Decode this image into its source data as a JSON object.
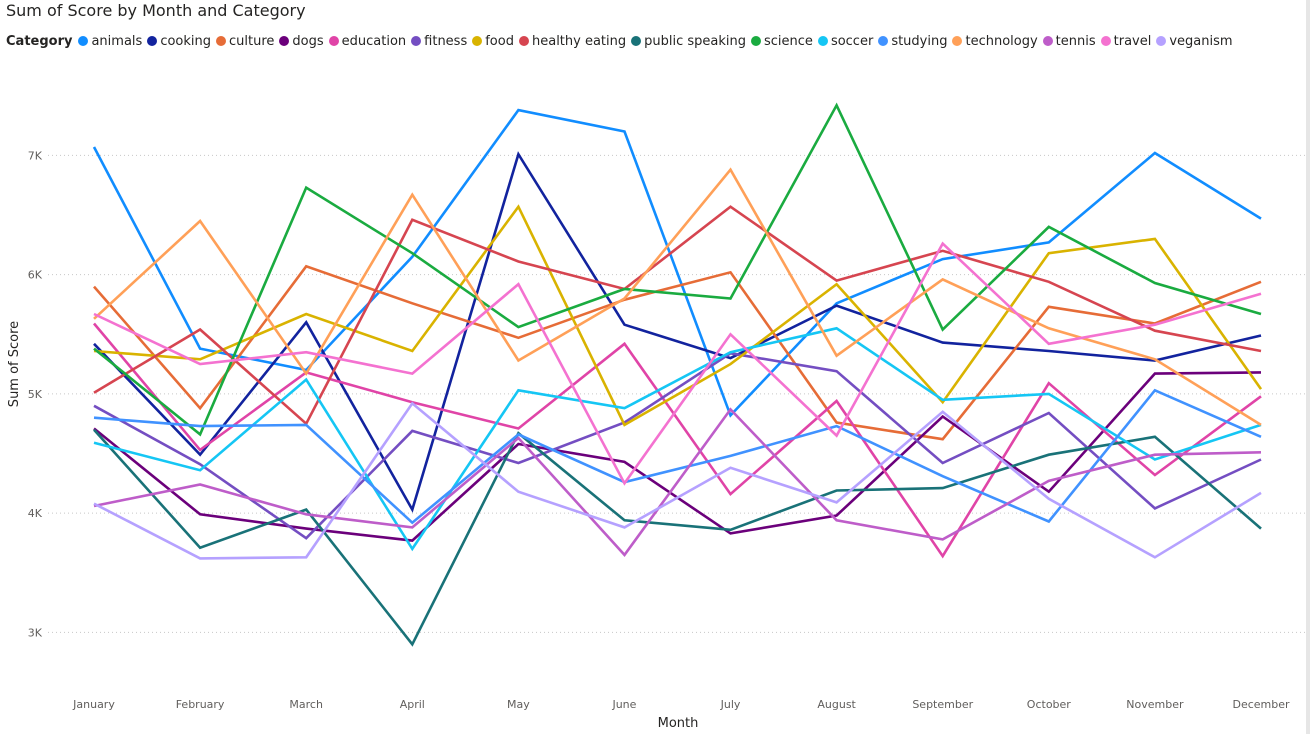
{
  "chart_data": {
    "type": "line",
    "title": "Sum of Score by Month and Category",
    "xlabel": "Month",
    "ylabel": "Sum of Score",
    "legend_title": "Category",
    "legend_position": "top-left",
    "ylim": [
      2500,
      7800
    ],
    "yticks": [
      3000,
      4000,
      5000,
      6000,
      7000
    ],
    "ytick_labels": [
      "3K",
      "4K",
      "5K",
      "6K",
      "7K"
    ],
    "grid": "horizontal-dotted",
    "categories": [
      "January",
      "February",
      "March",
      "April",
      "May",
      "June",
      "July",
      "August",
      "September",
      "October",
      "November",
      "December"
    ],
    "series": [
      {
        "name": "animals",
        "color": "#118DFF",
        "values": [
          7070,
          5380,
          5200,
          6150,
          7380,
          7200,
          4820,
          5760,
          6130,
          6270,
          7020,
          6470
        ]
      },
      {
        "name": "cooking",
        "color": "#12239E",
        "values": [
          5420,
          4490,
          5600,
          4030,
          7010,
          5580,
          5300,
          5740,
          5430,
          5360,
          5280,
          5490
        ]
      },
      {
        "name": "culture",
        "color": "#E66C37",
        "values": [
          5900,
          4880,
          6070,
          5760,
          5470,
          5790,
          6020,
          4760,
          4620,
          5730,
          5590,
          5940
        ]
      },
      {
        "name": "dogs",
        "color": "#6B007B",
        "values": [
          4710,
          3990,
          3870,
          3770,
          4580,
          4430,
          3830,
          3980,
          4810,
          4180,
          5170,
          5180
        ]
      },
      {
        "name": "education",
        "color": "#E044A7",
        "values": [
          5590,
          4530,
          5180,
          4930,
          4710,
          5420,
          4160,
          4940,
          3640,
          5090,
          4320,
          4980
        ]
      },
      {
        "name": "fitness",
        "color": "#744EC2",
        "values": [
          4900,
          4410,
          3790,
          4690,
          4420,
          4760,
          5340,
          5190,
          4420,
          4840,
          4040,
          4450
        ]
      },
      {
        "name": "food",
        "color": "#D9B300",
        "values": [
          5360,
          5290,
          5670,
          5360,
          6570,
          4740,
          5250,
          5920,
          4930,
          6180,
          6300,
          5040
        ]
      },
      {
        "name": "healthy eating",
        "color": "#D64550",
        "values": [
          5010,
          5540,
          4750,
          6460,
          6110,
          5880,
          6570,
          5950,
          6200,
          5940,
          5530,
          5360
        ]
      },
      {
        "name": "public speaking",
        "color": "#197278",
        "values": [
          4700,
          3710,
          4030,
          2900,
          4670,
          3940,
          3860,
          4190,
          4210,
          4490,
          4640,
          3870
        ]
      },
      {
        "name": "science",
        "color": "#1AAB40",
        "values": [
          5380,
          4660,
          6730,
          6180,
          5560,
          5880,
          5800,
          7420,
          5540,
          6400,
          5930,
          5670
        ]
      },
      {
        "name": "soccer",
        "color": "#15C6F4",
        "values": [
          4590,
          4360,
          5120,
          3700,
          5030,
          4880,
          5350,
          5550,
          4950,
          5000,
          4450,
          4740
        ]
      },
      {
        "name": "studying",
        "color": "#4092FF",
        "values": [
          4800,
          4730,
          4740,
          3920,
          4660,
          4260,
          4480,
          4730,
          4310,
          3930,
          5030,
          4640
        ]
      },
      {
        "name": "technology",
        "color": "#FFA058",
        "values": [
          5630,
          6450,
          5170,
          6670,
          5280,
          5800,
          6880,
          5320,
          5960,
          5550,
          5290,
          4740
        ]
      },
      {
        "name": "tennis",
        "color": "#BE5DC9",
        "values": [
          4060,
          4240,
          3990,
          3880,
          4630,
          3650,
          4870,
          3940,
          3780,
          4270,
          4490,
          4510
        ]
      },
      {
        "name": "travel",
        "color": "#F472D0",
        "values": [
          5670,
          5250,
          5350,
          5170,
          5920,
          4250,
          5500,
          4650,
          6260,
          5420,
          5580,
          5840
        ]
      },
      {
        "name": "veganism",
        "color": "#B5A1FF",
        "values": [
          4080,
          3620,
          3630,
          4920,
          4180,
          3880,
          4380,
          4090,
          4850,
          4120,
          3630,
          4170
        ]
      }
    ]
  }
}
